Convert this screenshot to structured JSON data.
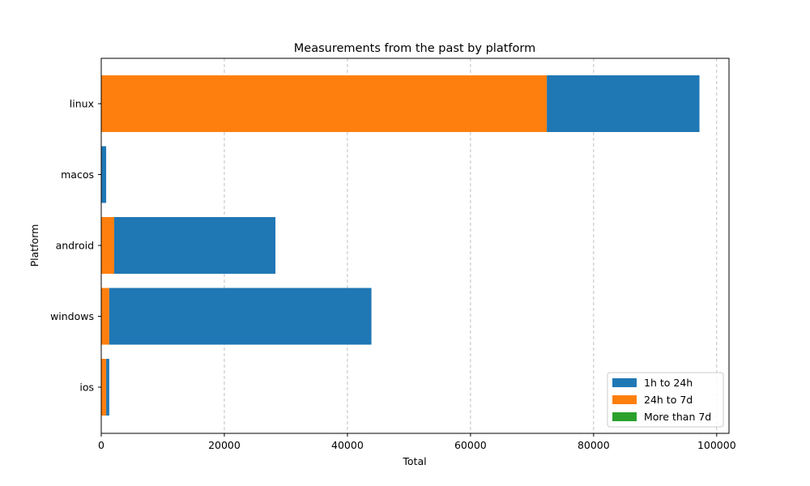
{
  "chart_data": {
    "type": "bar",
    "orientation": "horizontal",
    "stacked": true,
    "title": "Measurements from the past by platform",
    "xlabel": "Total",
    "ylabel": "Platform",
    "xlim": [
      0,
      102000
    ],
    "xticks": [
      0,
      20000,
      40000,
      60000,
      80000,
      100000
    ],
    "xtick_labels": [
      "0",
      "20000",
      "40000",
      "60000",
      "80000",
      "100000"
    ],
    "grid": "x dashed",
    "legend_position": "lower-right",
    "categories": [
      "linux",
      "macos",
      "android",
      "windows",
      "ios"
    ],
    "series": [
      {
        "name": "1h to 24h",
        "color": "#1f77b4",
        "values": [
          24800,
          800,
          26200,
          42600,
          500
        ]
      },
      {
        "name": "24h to 7d",
        "color": "#ff7f0e",
        "values": [
          72400,
          0,
          2100,
          1300,
          800
        ]
      },
      {
        "name": "More than 7d",
        "color": "#2ca02c",
        "values": [
          0,
          0,
          0,
          0,
          0
        ]
      }
    ],
    "stack_order_from_baseline": [
      "More than 7d",
      "24h to 7d",
      "1h to 24h"
    ]
  }
}
